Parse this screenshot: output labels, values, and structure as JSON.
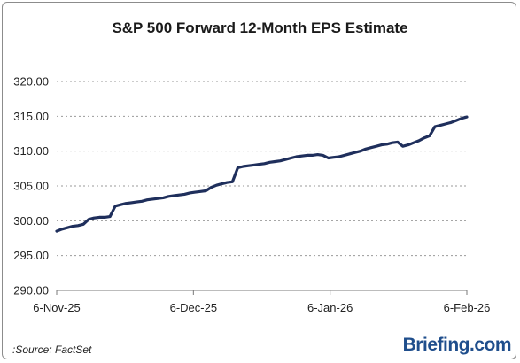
{
  "chart_data": {
    "type": "line",
    "title": "S&P 500 Forward 12-Month EPS Estimate",
    "xlabel": "",
    "ylabel": "",
    "ylim": [
      290,
      320
    ],
    "yticks": [
      "290.00",
      "295.00",
      "300.00",
      "305.00",
      "310.00",
      "315.00",
      "320.00"
    ],
    "xticks": [
      "6-Nov-25",
      "6-Dec-25",
      "6-Jan-26",
      "6-Feb-26"
    ],
    "grid": "horizontal-dashed",
    "line_color": "#1f2f5c",
    "series": [
      {
        "values": [
          [
            0,
            298.5
          ],
          [
            1,
            298.8
          ],
          [
            2,
            299.0
          ],
          [
            3,
            299.2
          ],
          [
            4,
            299.3
          ],
          [
            5,
            299.5
          ],
          [
            6,
            300.2
          ],
          [
            7,
            300.4
          ],
          [
            8,
            300.5
          ],
          [
            9,
            300.5
          ],
          [
            10,
            300.6
          ],
          [
            11,
            302.1
          ],
          [
            12,
            302.3
          ],
          [
            13,
            302.5
          ],
          [
            14,
            302.6
          ],
          [
            15,
            302.7
          ],
          [
            16,
            302.8
          ],
          [
            17,
            303.0
          ],
          [
            18,
            303.1
          ],
          [
            19,
            303.2
          ],
          [
            20,
            303.3
          ],
          [
            21,
            303.5
          ],
          [
            22,
            303.6
          ],
          [
            23,
            303.7
          ],
          [
            24,
            303.8
          ],
          [
            25,
            304.0
          ],
          [
            26,
            304.1
          ],
          [
            27,
            304.2
          ],
          [
            28,
            304.3
          ],
          [
            29,
            304.8
          ],
          [
            30,
            305.1
          ],
          [
            31,
            305.3
          ],
          [
            32,
            305.5
          ],
          [
            33,
            305.6
          ],
          [
            34,
            307.6
          ],
          [
            35,
            307.8
          ],
          [
            36,
            307.9
          ],
          [
            37,
            308.0
          ],
          [
            38,
            308.1
          ],
          [
            39,
            308.2
          ],
          [
            40,
            308.4
          ],
          [
            41,
            308.5
          ],
          [
            42,
            308.6
          ],
          [
            43,
            308.8
          ],
          [
            44,
            309.0
          ],
          [
            45,
            309.2
          ],
          [
            46,
            309.3
          ],
          [
            47,
            309.4
          ],
          [
            48,
            309.4
          ],
          [
            49,
            309.5
          ],
          [
            50,
            309.4
          ],
          [
            51,
            309.0
          ],
          [
            52,
            309.1
          ],
          [
            53,
            309.2
          ],
          [
            54,
            309.4
          ],
          [
            55,
            309.6
          ],
          [
            56,
            309.8
          ],
          [
            57,
            310.0
          ],
          [
            58,
            310.3
          ],
          [
            59,
            310.5
          ],
          [
            60,
            310.7
          ],
          [
            61,
            310.9
          ],
          [
            62,
            311.0
          ],
          [
            63,
            311.2
          ],
          [
            64,
            311.3
          ],
          [
            65,
            310.7
          ],
          [
            66,
            310.9
          ],
          [
            67,
            311.2
          ],
          [
            68,
            311.5
          ],
          [
            69,
            311.9
          ],
          [
            70,
            312.2
          ],
          [
            71,
            313.5
          ],
          [
            72,
            313.7
          ],
          [
            73,
            313.9
          ],
          [
            74,
            314.1
          ],
          [
            75,
            314.4
          ],
          [
            76,
            314.7
          ],
          [
            77,
            314.9
          ]
        ]
      }
    ]
  },
  "footer": {
    "source": ":Source: FactSet",
    "brand_main": "Briefing",
    "brand_suffix": ".com"
  }
}
